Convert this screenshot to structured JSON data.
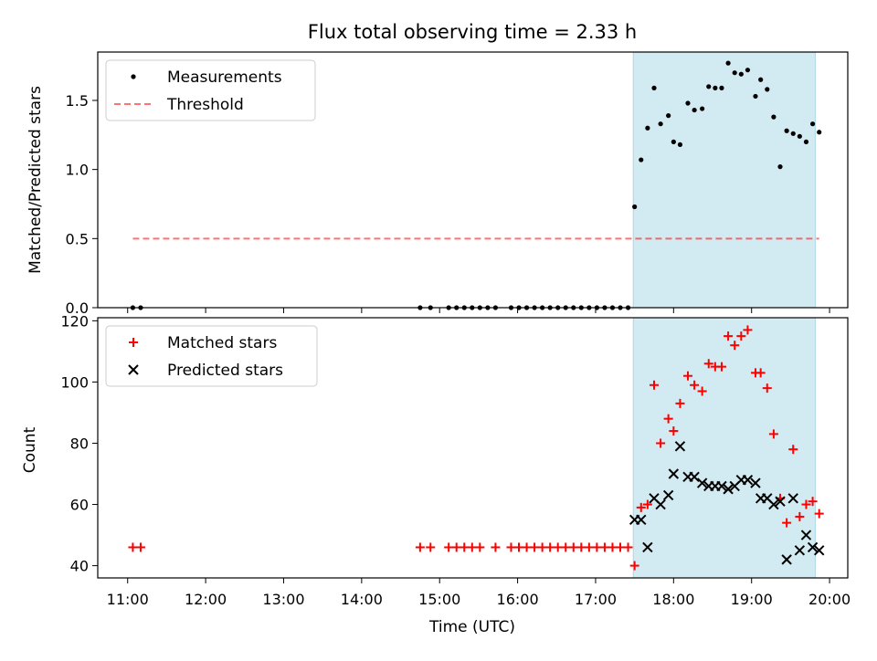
{
  "title": "Flux total observing time = 2.33 h",
  "xlabel": "Time (UTC)",
  "x_ticks": [
    "11:00",
    "12:00",
    "13:00",
    "14:00",
    "15:00",
    "16:00",
    "17:00",
    "18:00",
    "19:00",
    "20:00"
  ],
  "colors": {
    "highlight": "#add8e6",
    "threshold": "#ff0000",
    "matched": "#ff0000",
    "predicted": "#000000",
    "measure": "#000000"
  },
  "chart_data": [
    {
      "type": "scatter",
      "ylabel": "Matched/Predicted stars",
      "xlim": [
        "10:37",
        "20:14"
      ],
      "ylim": [
        0,
        1.85
      ],
      "y_ticks": [
        "0.0",
        "0.5",
        "1.0",
        "1.5"
      ],
      "highlight_span": [
        "17:29",
        "19:49"
      ],
      "legend_position": "upper-left",
      "series": [
        {
          "name": "Measurements",
          "points": [
            [
              "11:04",
              0
            ],
            [
              "11:10",
              0
            ],
            [
              "14:45",
              0
            ],
            [
              "14:53",
              0
            ],
            [
              "15:07",
              0
            ],
            [
              "15:13",
              0
            ],
            [
              "15:19",
              0
            ],
            [
              "15:25",
              0
            ],
            [
              "15:31",
              0
            ],
            [
              "15:37",
              0
            ],
            [
              "15:43",
              0
            ],
            [
              "15:55",
              0
            ],
            [
              "16:01",
              0
            ],
            [
              "16:07",
              0
            ],
            [
              "16:13",
              0
            ],
            [
              "16:19",
              0
            ],
            [
              "16:25",
              0
            ],
            [
              "16:31",
              0
            ],
            [
              "16:37",
              0
            ],
            [
              "16:43",
              0
            ],
            [
              "16:49",
              0
            ],
            [
              "16:55",
              0
            ],
            [
              "17:01",
              0
            ],
            [
              "17:07",
              0
            ],
            [
              "17:13",
              0
            ],
            [
              "17:19",
              0
            ],
            [
              "17:25",
              0
            ],
            [
              "17:30",
              0.73
            ],
            [
              "17:35",
              1.07
            ],
            [
              "17:40",
              1.3
            ],
            [
              "17:45",
              1.59
            ],
            [
              "17:50",
              1.33
            ],
            [
              "17:56",
              1.39
            ],
            [
              "18:00",
              1.2
            ],
            [
              "18:05",
              1.18
            ],
            [
              "18:11",
              1.48
            ],
            [
              "18:16",
              1.43
            ],
            [
              "18:22",
              1.44
            ],
            [
              "18:27",
              1.6
            ],
            [
              "18:32",
              1.59
            ],
            [
              "18:37",
              1.59
            ],
            [
              "18:42",
              1.77
            ],
            [
              "18:47",
              1.7
            ],
            [
              "18:52",
              1.69
            ],
            [
              "18:57",
              1.72
            ],
            [
              "19:03",
              1.53
            ],
            [
              "19:07",
              1.65
            ],
            [
              "19:12",
              1.58
            ],
            [
              "19:17",
              1.38
            ],
            [
              "19:22",
              1.02
            ],
            [
              "19:27",
              1.28
            ],
            [
              "19:32",
              1.26
            ],
            [
              "19:37",
              1.24
            ],
            [
              "19:42",
              1.2
            ],
            [
              "19:47",
              1.33
            ],
            [
              "19:52",
              1.27
            ]
          ]
        },
        {
          "name": "Threshold",
          "points": [
            [
              "11:04",
              0.5
            ],
            [
              "19:52",
              0.5
            ]
          ]
        }
      ]
    },
    {
      "type": "scatter",
      "ylabel": "Count",
      "xlim": [
        "10:37",
        "20:14"
      ],
      "ylim": [
        36,
        121
      ],
      "y_ticks": [
        "40",
        "60",
        "80",
        "100",
        "120"
      ],
      "highlight_span": [
        "17:29",
        "19:49"
      ],
      "legend_position": "upper-left",
      "series": [
        {
          "name": "Matched stars",
          "marker": "plus",
          "points": [
            [
              "11:04",
              46
            ],
            [
              "11:10",
              46
            ],
            [
              "14:45",
              46
            ],
            [
              "14:53",
              46
            ],
            [
              "15:07",
              46
            ],
            [
              "15:13",
              46
            ],
            [
              "15:19",
              46
            ],
            [
              "15:25",
              46
            ],
            [
              "15:31",
              46
            ],
            [
              "15:43",
              46
            ],
            [
              "15:55",
              46
            ],
            [
              "16:01",
              46
            ],
            [
              "16:07",
              46
            ],
            [
              "16:13",
              46
            ],
            [
              "16:19",
              46
            ],
            [
              "16:25",
              46
            ],
            [
              "16:31",
              46
            ],
            [
              "16:37",
              46
            ],
            [
              "16:43",
              46
            ],
            [
              "16:49",
              46
            ],
            [
              "16:55",
              46
            ],
            [
              "17:01",
              46
            ],
            [
              "17:07",
              46
            ],
            [
              "17:13",
              46
            ],
            [
              "17:19",
              46
            ],
            [
              "17:25",
              46
            ],
            [
              "17:30",
              40
            ],
            [
              "17:35",
              59
            ],
            [
              "17:40",
              60
            ],
            [
              "17:45",
              99
            ],
            [
              "17:50",
              80
            ],
            [
              "17:56",
              88
            ],
            [
              "18:00",
              84
            ],
            [
              "18:05",
              93
            ],
            [
              "18:11",
              102
            ],
            [
              "18:16",
              99
            ],
            [
              "18:22",
              97
            ],
            [
              "18:27",
              106
            ],
            [
              "18:32",
              105
            ],
            [
              "18:37",
              105
            ],
            [
              "18:42",
              115
            ],
            [
              "18:47",
              112
            ],
            [
              "18:52",
              115
            ],
            [
              "18:57",
              117
            ],
            [
              "19:03",
              103
            ],
            [
              "19:07",
              103
            ],
            [
              "19:12",
              98
            ],
            [
              "19:17",
              83
            ],
            [
              "19:22",
              62
            ],
            [
              "19:27",
              54
            ],
            [
              "19:32",
              78
            ],
            [
              "19:37",
              56
            ],
            [
              "19:42",
              60
            ],
            [
              "19:47",
              61
            ],
            [
              "19:52",
              57
            ]
          ]
        },
        {
          "name": "Predicted stars",
          "marker": "x",
          "points": [
            [
              "17:30",
              55
            ],
            [
              "17:35",
              55
            ],
            [
              "17:40",
              46
            ],
            [
              "17:45",
              62
            ],
            [
              "17:50",
              60
            ],
            [
              "17:56",
              63
            ],
            [
              "18:00",
              70
            ],
            [
              "18:05",
              79
            ],
            [
              "18:11",
              69
            ],
            [
              "18:16",
              69
            ],
            [
              "18:22",
              67
            ],
            [
              "18:27",
              66
            ],
            [
              "18:32",
              66
            ],
            [
              "18:37",
              66
            ],
            [
              "18:42",
              65
            ],
            [
              "18:47",
              66
            ],
            [
              "18:52",
              68
            ],
            [
              "18:57",
              68
            ],
            [
              "19:03",
              67
            ],
            [
              "19:07",
              62
            ],
            [
              "19:12",
              62
            ],
            [
              "19:17",
              60
            ],
            [
              "19:22",
              61
            ],
            [
              "19:27",
              42
            ],
            [
              "19:32",
              62
            ],
            [
              "19:37",
              45
            ],
            [
              "19:42",
              50
            ],
            [
              "19:47",
              46
            ],
            [
              "19:52",
              45
            ]
          ]
        }
      ]
    }
  ]
}
